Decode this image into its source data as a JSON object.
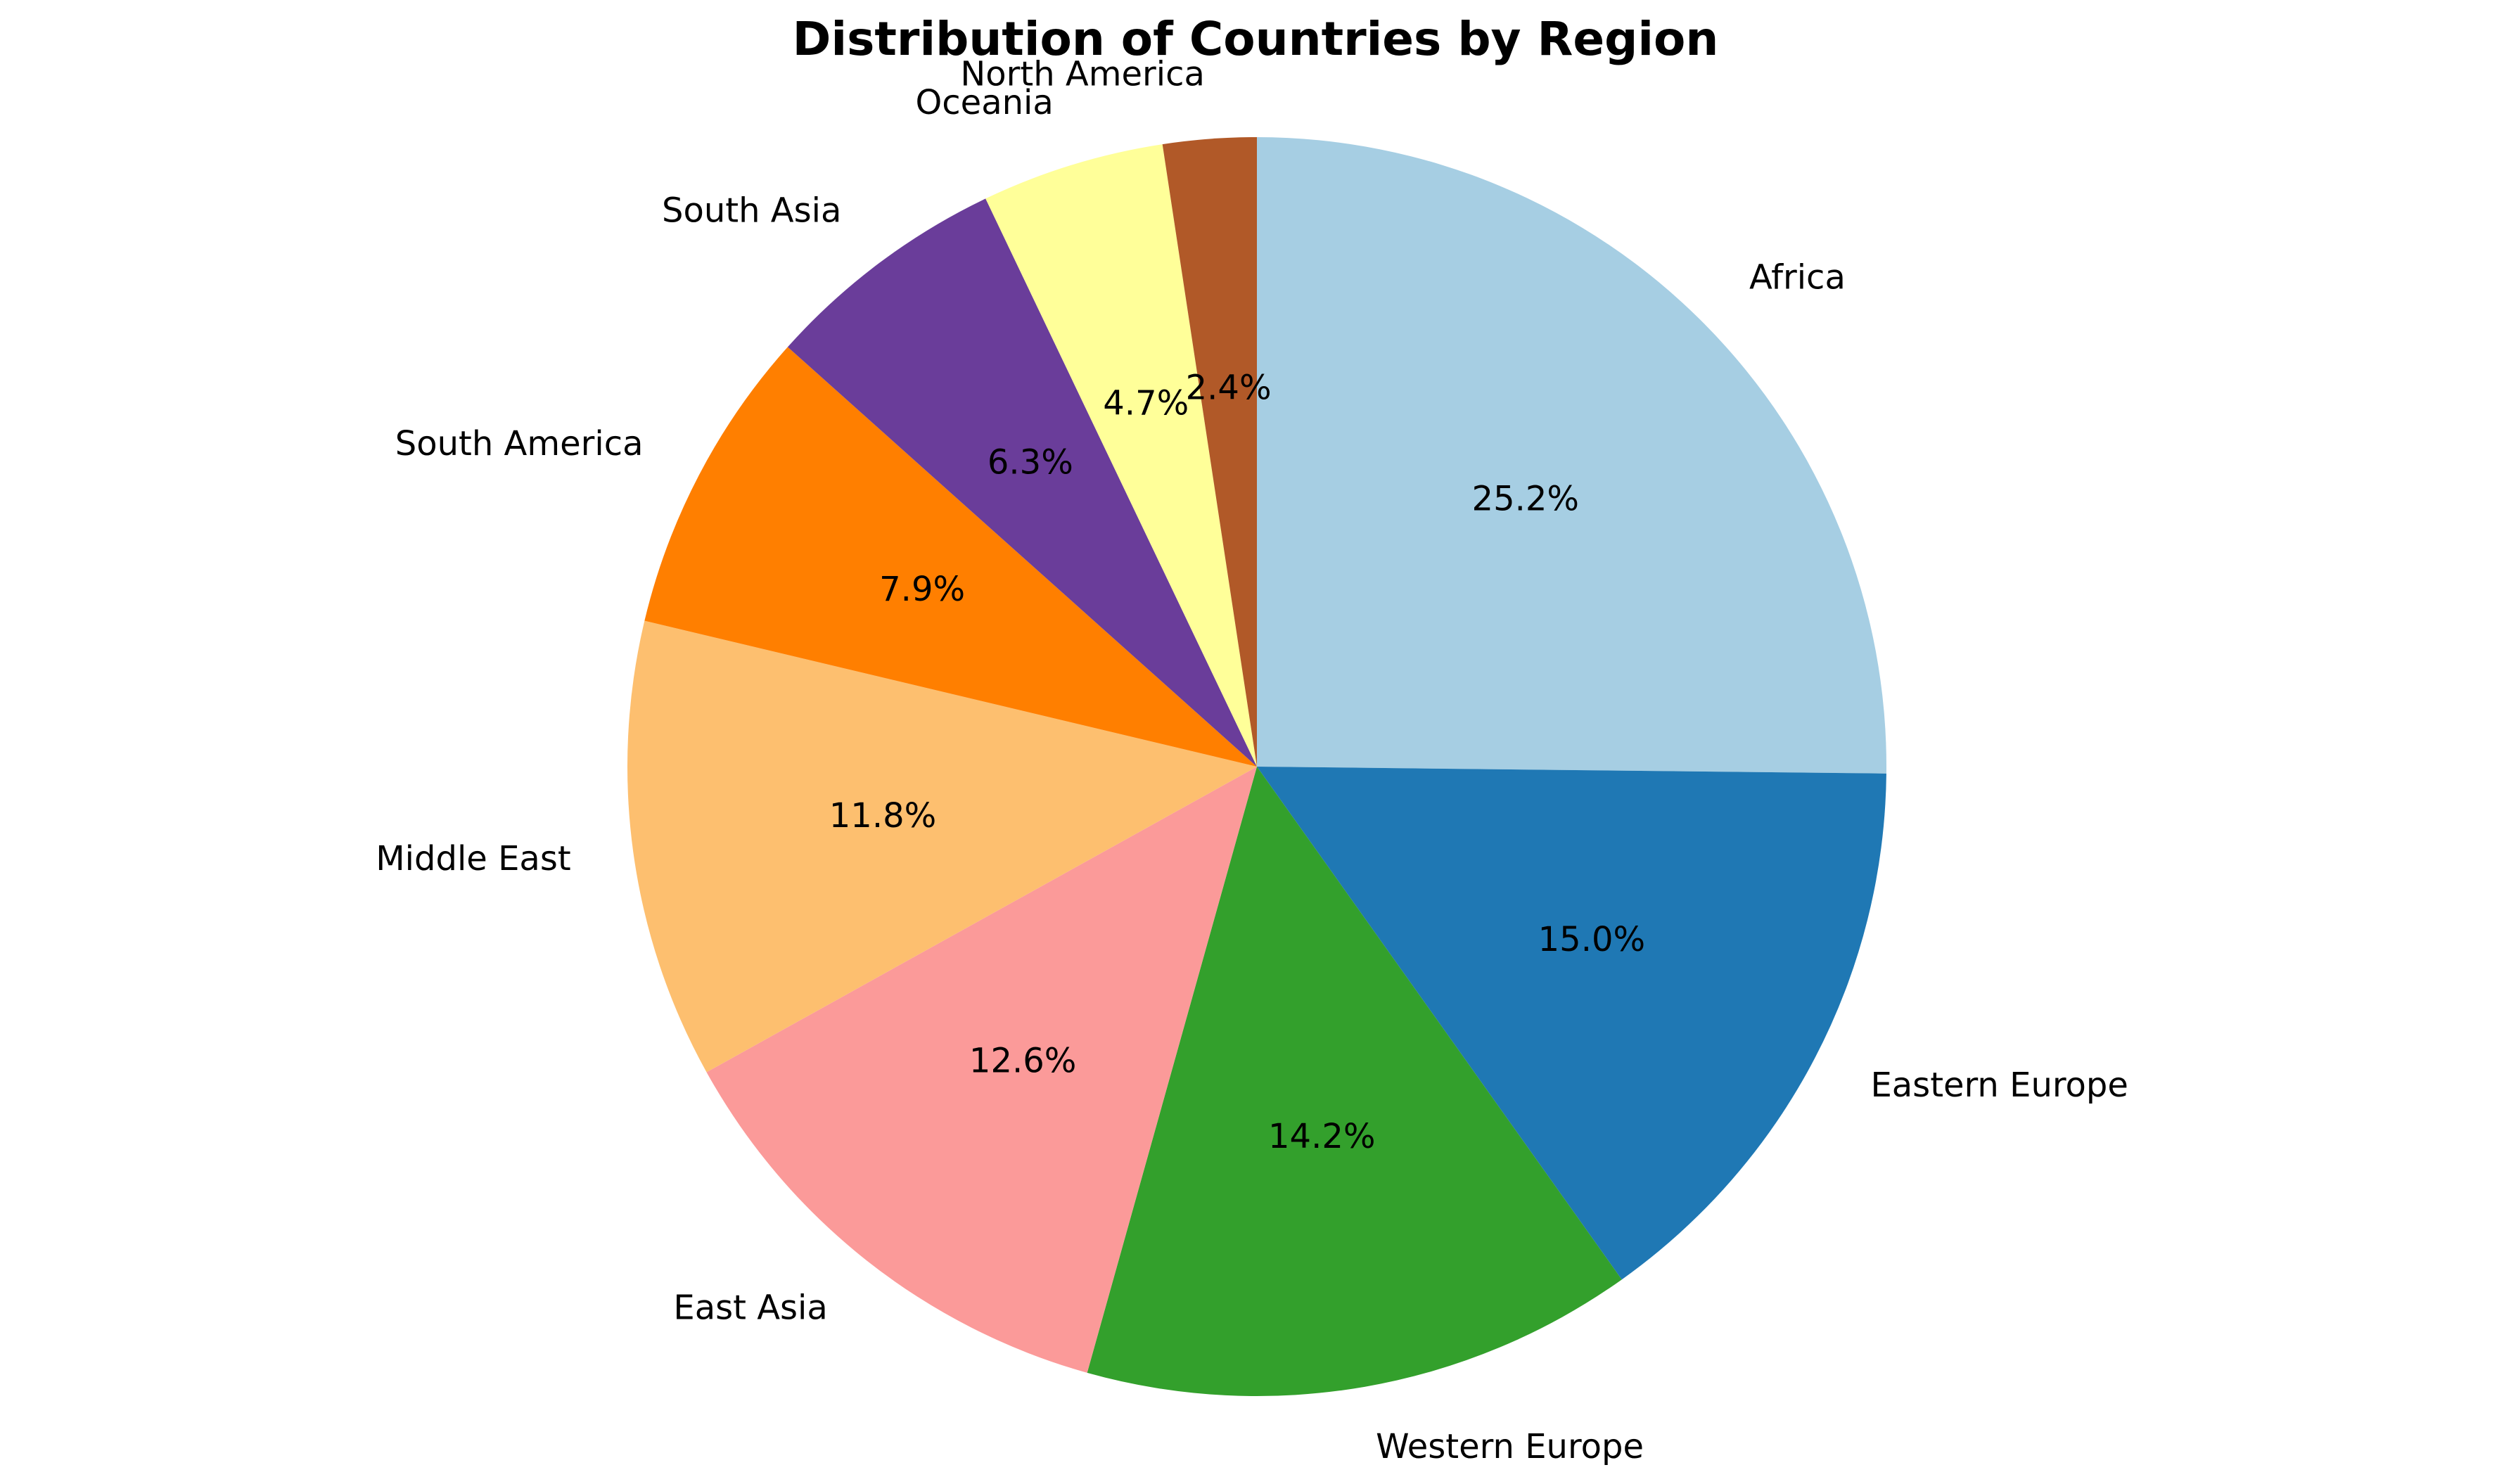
{
  "chart_data": {
    "type": "pie",
    "title": "Distribution of Countries by Region",
    "start_angle_deg": 90,
    "direction": "clockwise",
    "categories": [
      "Africa",
      "Eastern Europe",
      "Western Europe",
      "East Asia",
      "Middle East",
      "South America",
      "South Asia",
      "Oceania",
      "North America"
    ],
    "values": [
      25.2,
      15.0,
      14.2,
      12.6,
      11.8,
      7.9,
      6.3,
      4.7,
      2.4
    ],
    "percent_labels": [
      "25.2%",
      "15.0%",
      "14.2%",
      "12.6%",
      "11.8%",
      "7.9%",
      "6.3%",
      "4.7%",
      "2.4%"
    ],
    "colors": [
      "#a6cee3",
      "#1f78b4",
      "#33a02c",
      "#fb9a99",
      "#fdbf6f",
      "#ff7f00",
      "#6a3d9a",
      "#ffff99",
      "#b15928"
    ],
    "legend": "none"
  }
}
